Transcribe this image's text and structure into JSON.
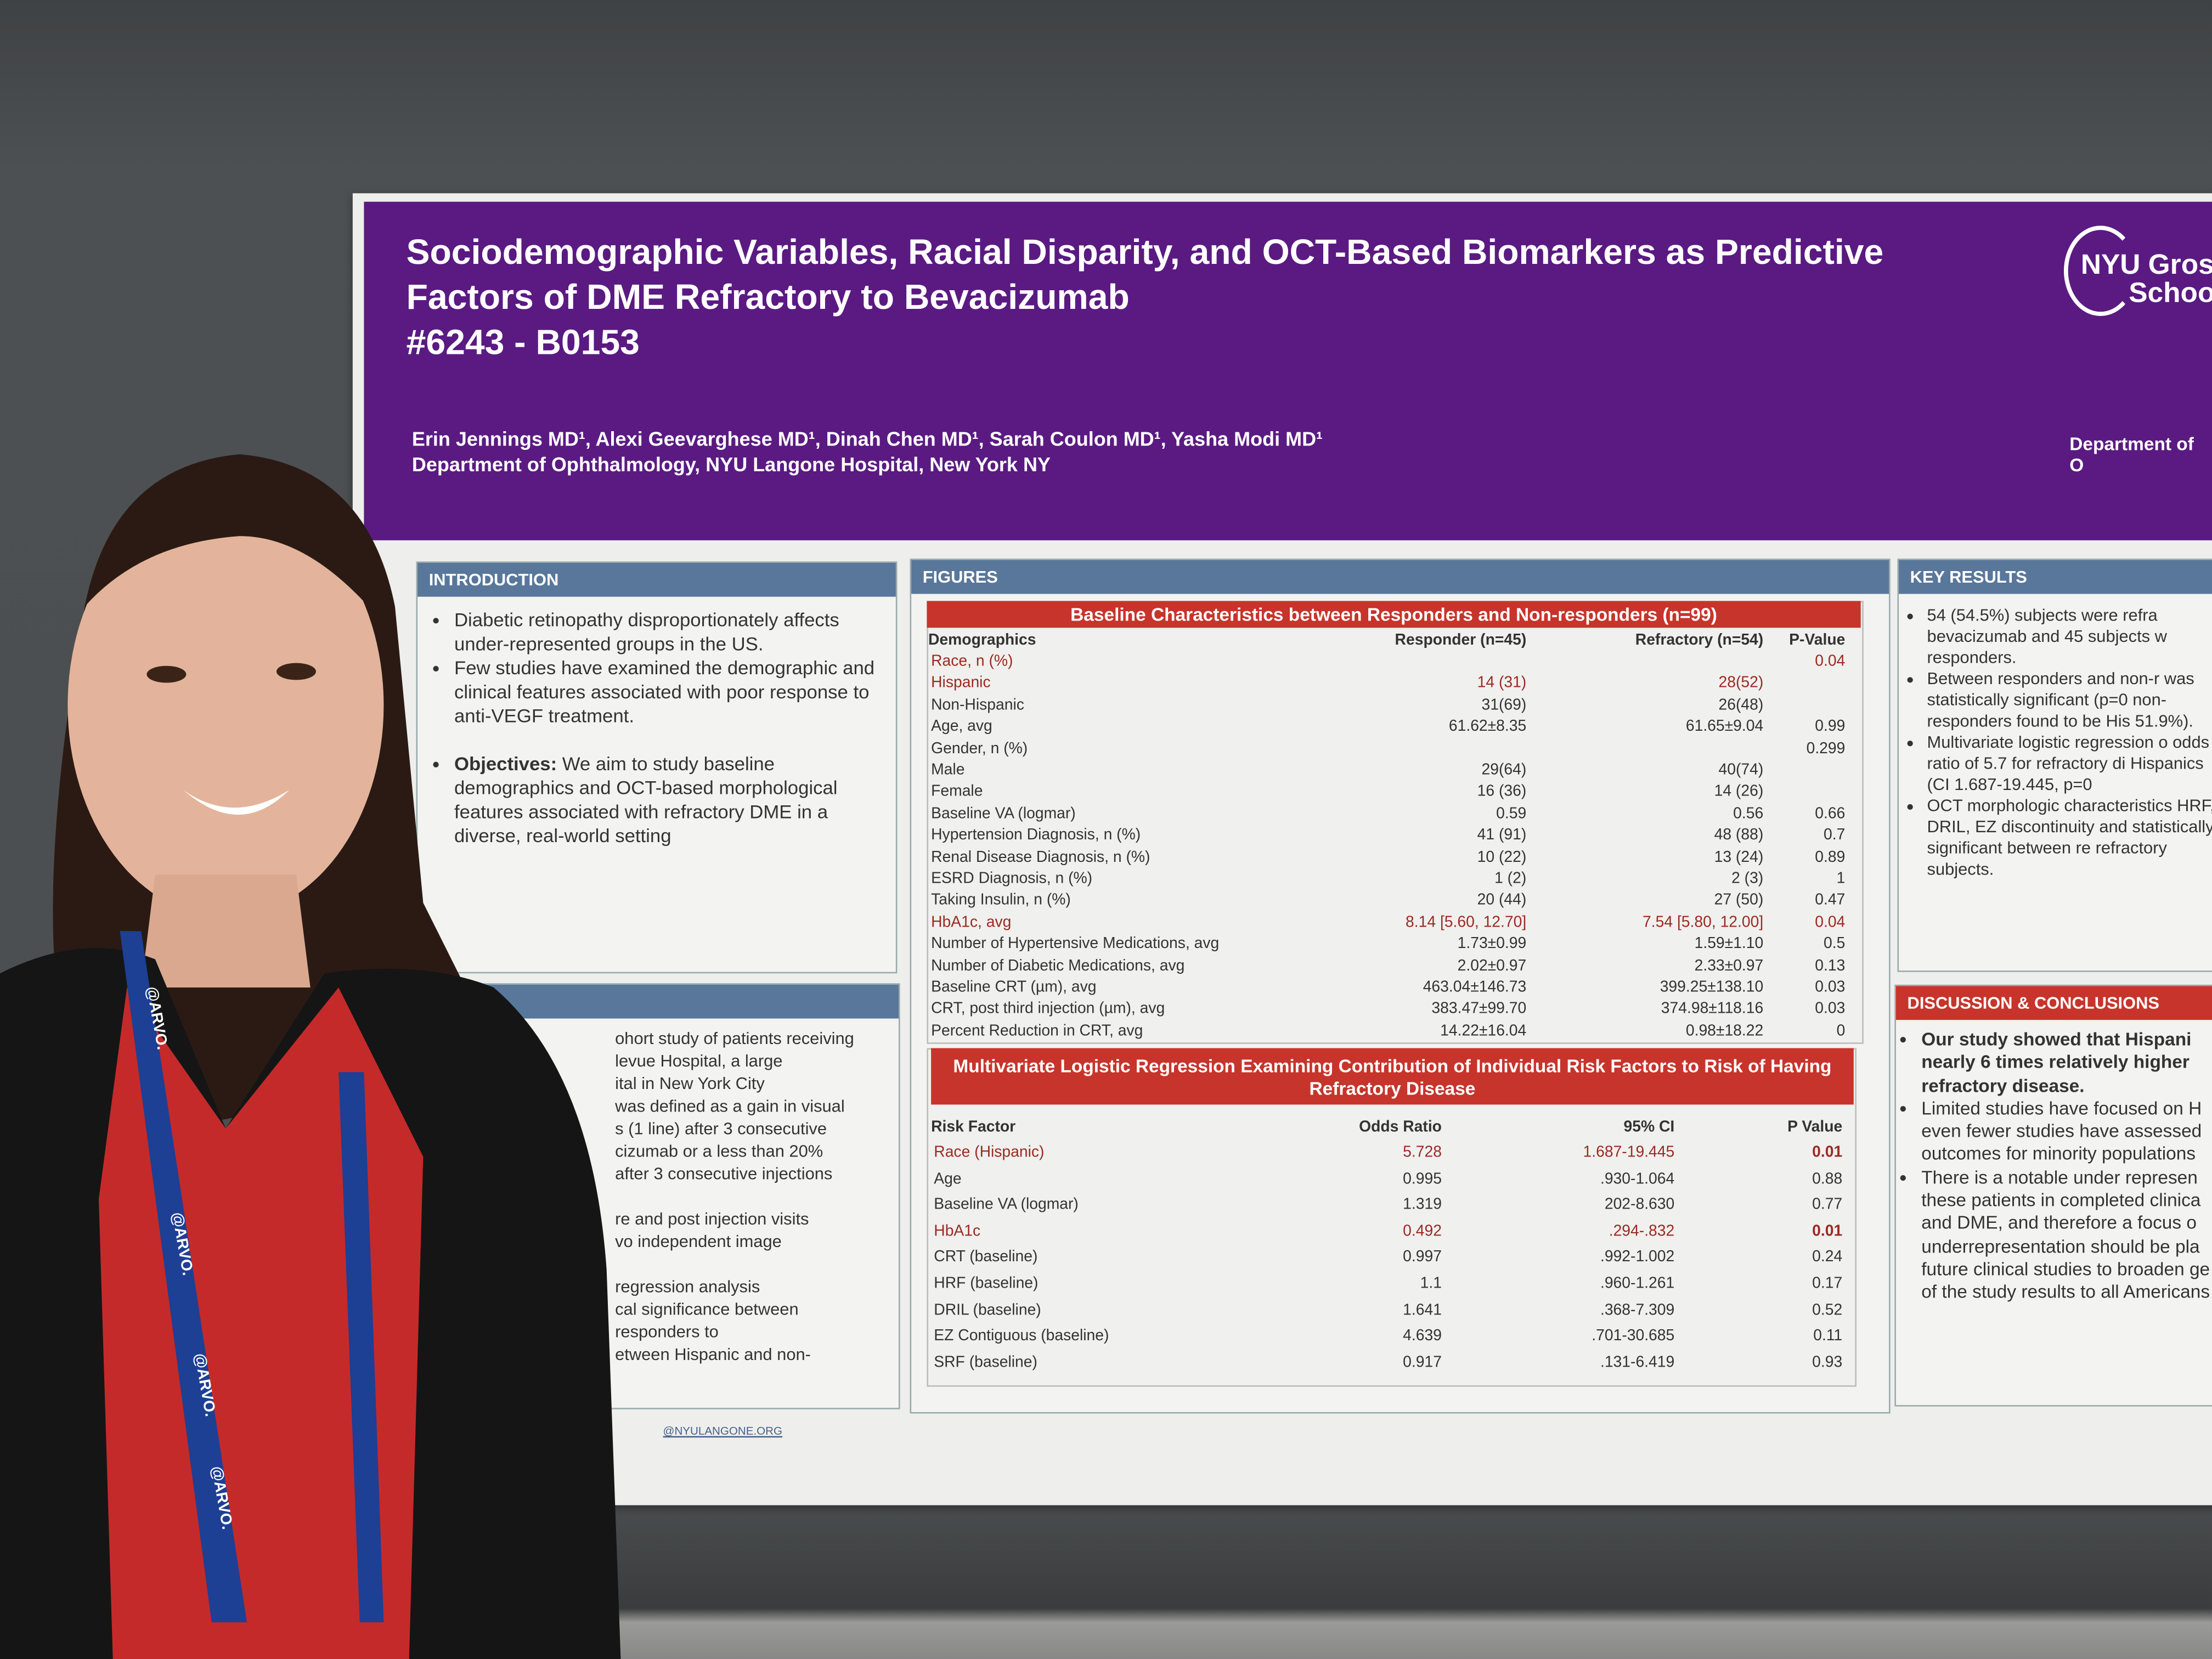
{
  "poster": {
    "title_lines": [
      "Sociodemographic Variables, Racial Disparity, and OCT-Based Biomarkers as Predictive",
      "Factors of DME Refractory to Bevacizumab",
      "#6243 - B0153"
    ],
    "authors": "Erin Jennings MD¹, Alexi Geevarghese MD¹, Dinah Chen MD¹, Sarah Coulon MD¹, Yasha Modi MD¹",
    "affiliation": "Department of Ophthalmology, NYU Langone Hospital, New York NY",
    "logo_lines": [
      "NYU Gros",
      "Schoo"
    ],
    "dept_right": "Department of O",
    "email": "@NYULANGONE.ORG"
  },
  "introduction": {
    "heading": "INTRODUCTION",
    "bullets": [
      "Diabetic retinopathy disproportionately affects under-represented groups in the US.",
      "Few studies have examined the demographic and clinical features associated with poor response to anti-VEGF treatment."
    ],
    "objectives_label": "Objectives:",
    "objectives_text": " We aim to study baseline demographics and OCT-based morphological features associated with refractory DME in a diverse, real-world setting"
  },
  "methods": {
    "lines": [
      "ohort study of patients receiving",
      "levue Hospital, a large",
      "ital in New York City",
      "was defined as a gain in visual",
      "s (1 line) after 3 consecutive",
      "cizumab or a less than 20%",
      "after 3 consecutive injections",
      "",
      "re and post injection visits",
      "vo independent image",
      "",
      "regression analysis",
      "cal significance between",
      "responders to",
      "etween Hispanic and non-"
    ]
  },
  "figures": {
    "heading": "FIGURES",
    "table1": {
      "title": "Baseline Characteristics between Responders and Non-responders (n=99)",
      "columns": [
        "Demographics",
        "Responder (n=45)",
        "Refractory  (n=54)",
        "P-Value"
      ],
      "rows": [
        {
          "label": "Race, n (%)",
          "r": "",
          "f": "",
          "p": "0.04",
          "hl": true
        },
        {
          "label": "Hispanic",
          "r": "14 (31)",
          "f": "28(52)",
          "p": "",
          "hl": true
        },
        {
          "label": "Non-Hispanic",
          "r": "31(69)",
          "f": "26(48)",
          "p": ""
        },
        {
          "label": "Age, avg",
          "r": "61.62±8.35",
          "f": "61.65±9.04",
          "p": "0.99"
        },
        {
          "label": "Gender, n (%)",
          "r": "",
          "f": "",
          "p": "0.299"
        },
        {
          "label": "Male",
          "r": "29(64)",
          "f": "40(74)",
          "p": ""
        },
        {
          "label": "Female",
          "r": "16 (36)",
          "f": "14 (26)",
          "p": ""
        },
        {
          "label": "Baseline VA (logmar)",
          "r": "0.59",
          "f": "0.56",
          "p": "0.66"
        },
        {
          "label": "Hypertension Diagnosis, n (%)",
          "r": "41 (91)",
          "f": "48 (88)",
          "p": "0.7"
        },
        {
          "label": "Renal Disease Diagnosis, n (%)",
          "r": "10 (22)",
          "f": "13 (24)",
          "p": "0.89"
        },
        {
          "label": "ESRD Diagnosis, n (%)",
          "r": "1 (2)",
          "f": "2 (3)",
          "p": "1"
        },
        {
          "label": "Taking Insulin, n (%)",
          "r": "20 (44)",
          "f": "27 (50)",
          "p": "0.47"
        },
        {
          "label": "HbA1c, avg",
          "r": "8.14 [5.60, 12.70]",
          "f": "7.54 [5.80, 12.00]",
          "p": "0.04",
          "hl": true
        },
        {
          "label": "Number of Hypertensive Medications, avg",
          "r": "1.73±0.99",
          "f": "1.59±1.10",
          "p": "0.5"
        },
        {
          "label": "Number of Diabetic Medications, avg",
          "r": "2.02±0.97",
          "f": "2.33±0.97",
          "p": "0.13"
        },
        {
          "label": "Baseline CRT (µm), avg",
          "r": "463.04±146.73",
          "f": "399.25±138.10",
          "p": "0.03"
        },
        {
          "label": "CRT, post third injection (µm), avg",
          "r": "383.47±99.70",
          "f": "374.98±118.16",
          "p": "0.03"
        },
        {
          "label": "Percent Reduction in CRT, avg",
          "r": "14.22±16.04",
          "f": "0.98±18.22",
          "p": "0"
        }
      ]
    },
    "table2": {
      "title": "Multivariate Logistic Regression Examining Contribution of Individual Risk Factors to Risk of Having Refractory Disease",
      "columns": [
        "Risk Factor",
        "Odds Ratio",
        "95% CI",
        "P Value"
      ],
      "rows": [
        {
          "label": "Race (Hispanic)",
          "r": "5.728",
          "f": "1.687-19.445",
          "p": "0.01",
          "hl": true
        },
        {
          "label": "Age",
          "r": "0.995",
          "f": ".930-1.064",
          "p": "0.88"
        },
        {
          "label": "Baseline VA (logmar)",
          "r": "1.319",
          "f": "202-8.630",
          "p": "0.77"
        },
        {
          "label": "HbA1c",
          "r": "0.492",
          "f": ".294-.832",
          "p": "0.01",
          "hl": true
        },
        {
          "label": "CRT (baseline)",
          "r": "0.997",
          "f": ".992-1.002",
          "p": "0.24"
        },
        {
          "label": "HRF (baseline)",
          "r": "1.1",
          "f": ".960-1.261",
          "p": "0.17"
        },
        {
          "label": "DRIL (baseline)",
          "r": "1.641",
          "f": ".368-7.309",
          "p": "0.52"
        },
        {
          "label": "EZ Contiguous (baseline)",
          "r": "4.639",
          "f": ".701-30.685",
          "p": "0.11"
        },
        {
          "label": "SRF (baseline)",
          "r": "0.917",
          "f": ".131-6.419",
          "p": "0.93"
        }
      ]
    }
  },
  "key_results": {
    "heading": "KEY RESULTS",
    "bullets": [
      "54 (54.5%) subjects were refra bevacizumab and 45 subjects w responders.",
      " Between responders and non-r was statistically significant (p=0 non-responders found to be His 51.9%).",
      "Multivariate logistic regression o odds ratio of 5.7 for refractory di Hispanics (CI 1.687-19.445, p=0",
      "OCT morphologic characteristics HRF, DRIL, EZ discontinuity and statistically significant between re refractory subjects."
    ]
  },
  "discussion": {
    "heading": "DISCUSSION & CONCLUSIONS",
    "bold_bullet": "Our study showed that Hispani nearly 6 times relatively higher refractory disease.",
    "bullets": [
      "Limited studies have focused on H even fewer studies have assessed outcomes for minority populations",
      "There is a notable under represen these patients in completed clinica and DME, and  therefore a focus o underrepresentation should be pla future clinical studies to broaden ge of the study results to all Americans"
    ]
  },
  "lanyard": {
    "text": "@ARVO."
  },
  "colors": {
    "purple": "#5a1a82",
    "section_blue": "#58779a",
    "section_red": "#c7342b",
    "highlight": "#9b2a22"
  }
}
